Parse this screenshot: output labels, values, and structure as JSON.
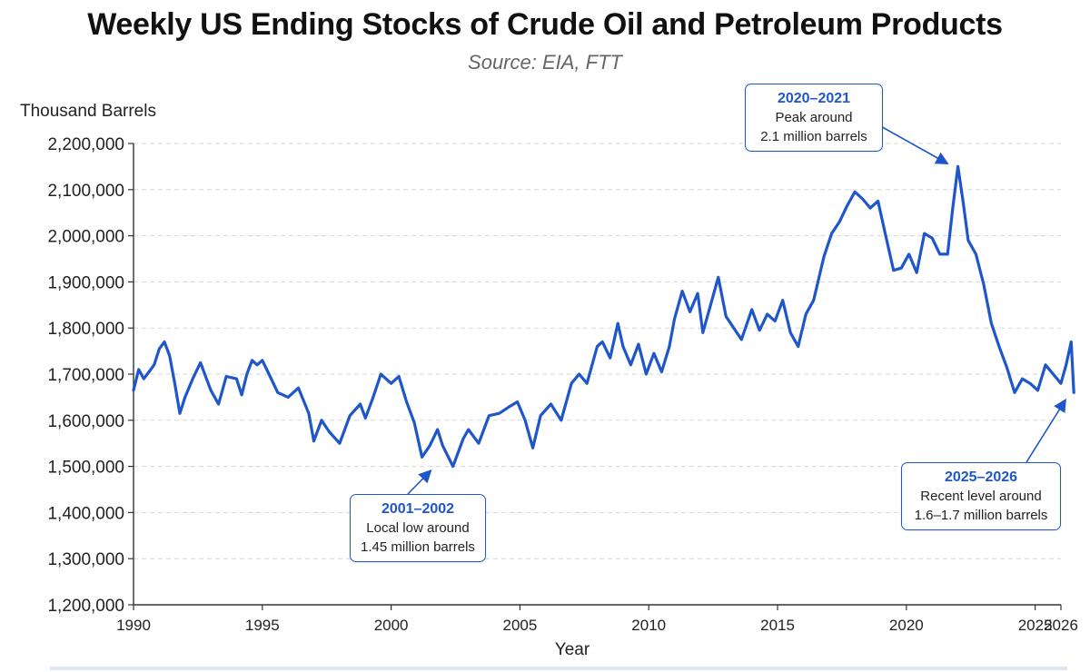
{
  "chart_data": {
    "type": "line",
    "title": "Weekly US Ending Stocks of Crude Oil and Petroleum Products",
    "subtitle": "Source: EIA, FTT",
    "ylabel": "Thousand Barrels",
    "xlabel": "Year",
    "xlim": [
      1990,
      2026
    ],
    "ylim": [
      1200000,
      2200000
    ],
    "x_ticks": [
      "1990",
      "1995",
      "2000",
      "2005",
      "2010",
      "2015",
      "2020",
      "2025",
      "2026"
    ],
    "x_tick_values": [
      1990,
      1995,
      2000,
      2005,
      2010,
      2015,
      2020,
      2025,
      2026
    ],
    "y_ticks": [
      "1,200,000",
      "1,300,000",
      "1,400,000",
      "1,500,000",
      "1,600,000",
      "1,700,000",
      "1,800,000",
      "1,900,000",
      "2,000,000",
      "2,100,000",
      "2,200,000"
    ],
    "y_tick_values": [
      1200000,
      1300000,
      1400000,
      1500000,
      1600000,
      1700000,
      1800000,
      1900000,
      2000000,
      2100000,
      2200000
    ],
    "grid": "horizontal-dashed",
    "series_color": "#1f56c9",
    "series": [
      {
        "x": [
          1990.0,
          1990.2,
          1990.4,
          1990.6,
          1990.8,
          1991.0,
          1991.2,
          1991.4,
          1991.6,
          1991.8,
          1992.0,
          1992.3,
          1992.6,
          1993.0,
          1993.3,
          1993.6,
          1994.0,
          1994.2,
          1994.4,
          1994.6,
          1994.8,
          1995.0,
          1995.3,
          1995.6,
          1996.0,
          1996.4,
          1996.8,
          1997.0,
          1997.3,
          1997.6,
          1998.0,
          1998.4,
          1998.8,
          1999.0,
          1999.3,
          1999.6,
          2000.0,
          2000.3,
          2000.6,
          2000.9,
          2001.2,
          2001.5,
          2001.8,
          2002.0,
          2002.4,
          2002.8,
          2003.0,
          2003.4,
          2003.8,
          2004.2,
          2004.6,
          2004.9,
          2005.2,
          2005.5,
          2005.8,
          2006.2,
          2006.6,
          2007.0,
          2007.3,
          2007.6,
          2008.0,
          2008.2,
          2008.5,
          2008.8,
          2009.0,
          2009.3,
          2009.6,
          2009.9,
          2010.2,
          2010.5,
          2010.8,
          2011.0,
          2011.3,
          2011.6,
          2011.9,
          2012.1,
          2012.4,
          2012.7,
          2013.0,
          2013.3,
          2013.6,
          2014.0,
          2014.3,
          2014.6,
          2014.9,
          2015.2,
          2015.5,
          2015.8,
          2016.1,
          2016.4,
          2016.8,
          2017.1,
          2017.4,
          2017.7,
          2018.0,
          2018.3,
          2018.6,
          2018.9,
          2019.2,
          2019.5,
          2019.8,
          2020.1,
          2020.4,
          2020.7,
          2021.0,
          2021.3,
          2021.6,
          2021.8,
          2022.0,
          2022.2,
          2022.4,
          2022.7,
          2023.0,
          2023.3,
          2023.6,
          2023.9,
          2024.2,
          2024.5,
          2024.8,
          2025.1,
          2025.4,
          2025.7,
          2026.0,
          2026.2,
          2026.4,
          2026.5
        ],
        "values": [
          1665000,
          1710000,
          1690000,
          1705000,
          1720000,
          1755000,
          1770000,
          1740000,
          1680000,
          1615000,
          1650000,
          1690000,
          1725000,
          1665000,
          1635000,
          1695000,
          1690000,
          1655000,
          1700000,
          1730000,
          1720000,
          1730000,
          1695000,
          1660000,
          1650000,
          1670000,
          1615000,
          1555000,
          1600000,
          1575000,
          1550000,
          1610000,
          1635000,
          1605000,
          1650000,
          1700000,
          1680000,
          1695000,
          1640000,
          1595000,
          1520000,
          1545000,
          1580000,
          1545000,
          1500000,
          1560000,
          1580000,
          1550000,
          1610000,
          1615000,
          1630000,
          1640000,
          1600000,
          1540000,
          1610000,
          1635000,
          1600000,
          1680000,
          1700000,
          1680000,
          1760000,
          1770000,
          1735000,
          1810000,
          1760000,
          1720000,
          1765000,
          1700000,
          1745000,
          1705000,
          1760000,
          1820000,
          1880000,
          1835000,
          1875000,
          1790000,
          1850000,
          1910000,
          1825000,
          1800000,
          1775000,
          1840000,
          1795000,
          1830000,
          1815000,
          1860000,
          1790000,
          1760000,
          1830000,
          1860000,
          1955000,
          2005000,
          2030000,
          2065000,
          2095000,
          2080000,
          2060000,
          2075000,
          2000000,
          1925000,
          1930000,
          1960000,
          1920000,
          2005000,
          1995000,
          1960000,
          1960000,
          2060000,
          2150000,
          2075000,
          1990000,
          1960000,
          1895000,
          1810000,
          1760000,
          1715000,
          1660000,
          1690000,
          1680000,
          1665000,
          1720000,
          1700000,
          1680000,
          1720000,
          1770000,
          1660000
        ]
      }
    ],
    "annotations": [
      {
        "head": "2001–2002",
        "line1": "Local low around",
        "line2": "1.45 million barrels",
        "target_x": 2001.7,
        "target_y": 1500000
      },
      {
        "head": "2020–2021",
        "line1": "Peak around",
        "line2": "2.1 million barrels",
        "target_x": 2021.8,
        "target_y": 2150000
      },
      {
        "head": "2025–2026",
        "line1": "Recent level around",
        "line2": "1.6–1.7 million barrels",
        "target_x": 2026.3,
        "target_y": 1655000
      }
    ]
  }
}
